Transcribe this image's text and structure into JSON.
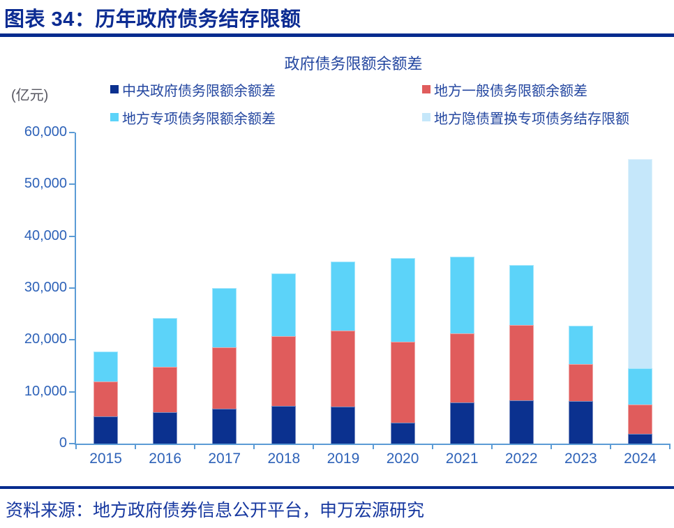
{
  "header": {
    "title": "图表 34：历年政府债务结存限额"
  },
  "chart": {
    "title": "政府债务限额余额差",
    "unit_label": "(亿元)"
  },
  "chart_data": {
    "type": "bar",
    "stacked": true,
    "title": "政府债务限额余额差",
    "ylabel": "(亿元)",
    "categories": [
      "2015",
      "2016",
      "2017",
      "2018",
      "2019",
      "2020",
      "2021",
      "2022",
      "2023",
      "2024"
    ],
    "series": [
      {
        "name": "中央政府债务限额余额差",
        "color": "#0B318F",
        "values": [
          5300,
          6000,
          6700,
          7300,
          7100,
          4100,
          7900,
          8400,
          8200,
          1900
        ]
      },
      {
        "name": "地方一般债务限额余额差",
        "color": "#E05C5C",
        "values": [
          6700,
          8800,
          11900,
          13400,
          14700,
          15500,
          13300,
          14500,
          7100,
          5700
        ]
      },
      {
        "name": "地方专项债务限额余额差",
        "color": "#5CD3F9",
        "values": [
          5800,
          9400,
          11400,
          12100,
          13300,
          16200,
          14800,
          11500,
          7400,
          7000
        ]
      },
      {
        "name": "地方隐债置换专项债务结存限额",
        "color": "#C5E7FA",
        "values": [
          0,
          0,
          0,
          0,
          0,
          0,
          0,
          0,
          0,
          40300
        ]
      }
    ],
    "ylim": [
      0,
      60000
    ],
    "ytick_step": 10000,
    "yticks": [
      "60,000",
      "50,000",
      "40,000",
      "30,000",
      "20,000",
      "10,000",
      "0"
    ],
    "legend_position": "top",
    "grid": false,
    "colors": {
      "axis": "#5B9BD5",
      "tick_label": "#2E62B8",
      "legend_text": "#2447A0"
    }
  },
  "footer": {
    "source": "资料来源：地方政府债券信息公开平台，申万宏源研究"
  }
}
